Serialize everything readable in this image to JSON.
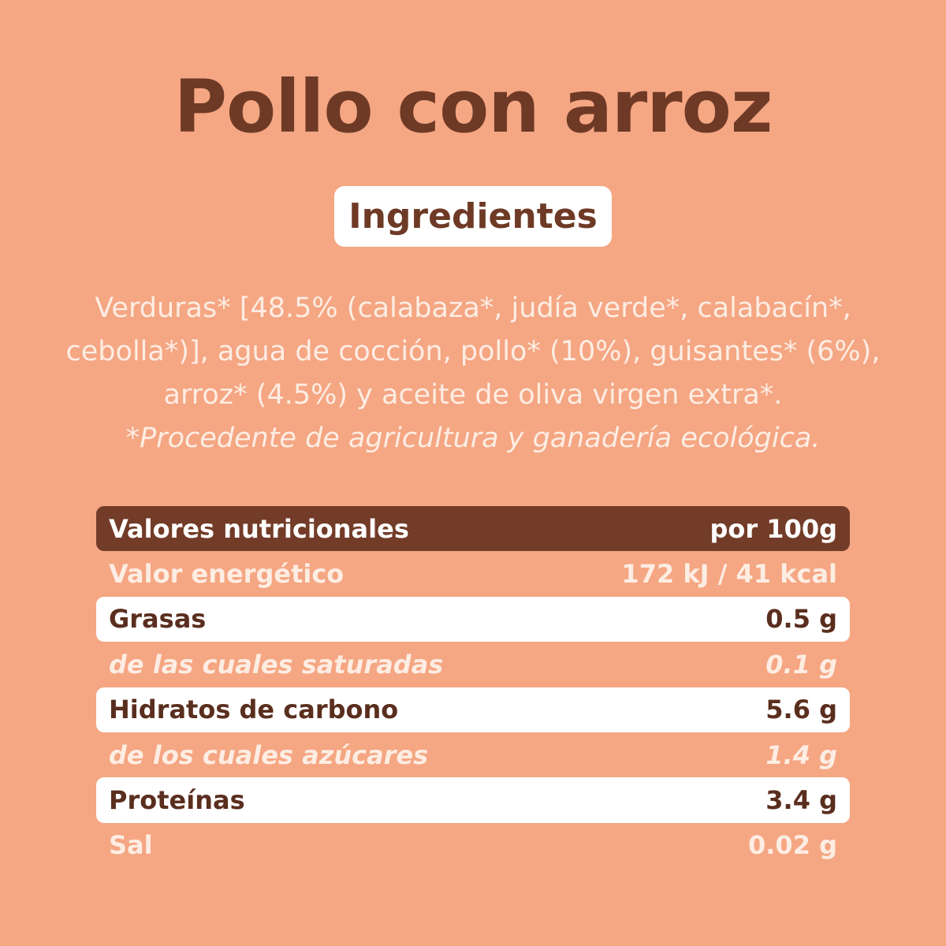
{
  "title": "Pollo con arroz",
  "ingredients_label": "Ingredientes",
  "ingredients_text": "Verduras* [48.5% (calabaza*, judía verde*, calabacín*, cebolla*)], agua de cocción, pollo* (10%), guisantes* (6%), arroz* (4.5%) y aceite de oliva virgen extra*.",
  "ingredients_note": "*Procedente de agricultura y ganadería ecológica.",
  "nutrition": {
    "header": {
      "label": "Valores nutricionales",
      "value": "por 100g"
    },
    "rows": [
      {
        "label": "Valor energético",
        "value": "172 kJ / 41 kcal",
        "style": "plain"
      },
      {
        "label": "Grasas",
        "value": "0.5 g",
        "style": "white"
      },
      {
        "label": "de las cuales saturadas",
        "value": "0.1 g",
        "style": "sub"
      },
      {
        "label": "Hidratos de carbono",
        "value": "5.6 g",
        "style": "white"
      },
      {
        "label": "de los cuales azúcares",
        "value": "1.4 g",
        "style": "sub"
      },
      {
        "label": "Proteínas",
        "value": "3.4 g",
        "style": "white"
      },
      {
        "label": "Sal",
        "value": "0.02 g",
        "style": "plain"
      }
    ]
  },
  "colors": {
    "background": "#F5A683",
    "brown": "#733C28",
    "text_light": "#FDEDE3"
  }
}
